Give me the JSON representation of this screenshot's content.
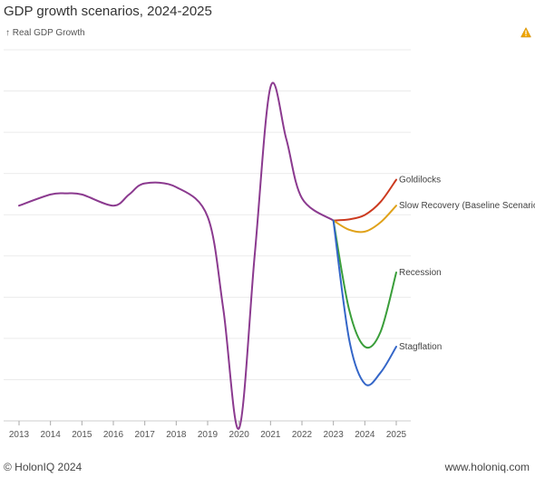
{
  "title": "GDP growth scenarios, 2024-2025",
  "footer": {
    "left": "© HolonIQ 2024",
    "right": "www.holoniq.com"
  },
  "icons": {
    "warning": "warning-icon"
  },
  "chart_data": {
    "type": "line",
    "title": "GDP growth scenarios, 2024-2025",
    "ylabel": "↑ Real GDP Growth",
    "xlabel": "",
    "x_ticks": [
      "2013",
      "2014",
      "2015",
      "2016",
      "2017",
      "2018",
      "2019",
      "2020",
      "2021",
      "2022",
      "2023",
      "2024",
      "2025"
    ],
    "xlim": [
      2013,
      2025
    ],
    "ylim": [
      0,
      100
    ],
    "y_ticks_shown": false,
    "grid": "horizontal",
    "series": [
      {
        "name": "",
        "color": "#8b3a8f",
        "x": [
          2013,
          2014,
          2014.5,
          2015,
          2016,
          2016.5,
          2017,
          2018,
          2019,
          2019.5,
          2020,
          2020.5,
          2021,
          2021.5,
          2022,
          2023
        ],
        "y": [
          58,
          61,
          61.3,
          61,
          58,
          61,
          64,
          63,
          55,
          30,
          -2,
          45,
          90,
          76,
          60,
          54
        ]
      },
      {
        "name": "Goldilocks",
        "color": "#cc3a1f",
        "x": [
          2023,
          2023.5,
          2024,
          2024.5,
          2025
        ],
        "y": [
          54,
          54.3,
          55.5,
          59,
          65
        ]
      },
      {
        "name": "Slow Recovery (Baseline Scenario)",
        "color": "#e0a21a",
        "x": [
          2023,
          2023.5,
          2024,
          2024.5,
          2025
        ],
        "y": [
          54,
          51.5,
          51,
          53.5,
          58
        ]
      },
      {
        "name": "Recession",
        "color": "#3a9e3a",
        "x": [
          2023,
          2023.5,
          2024,
          2024.5,
          2025
        ],
        "y": [
          54,
          30,
          20,
          24,
          40
        ]
      },
      {
        "name": "Stagflation",
        "color": "#3466c8",
        "x": [
          2023,
          2023.5,
          2024,
          2024.5,
          2025
        ],
        "y": [
          54,
          22,
          10,
          13,
          20
        ]
      }
    ]
  }
}
